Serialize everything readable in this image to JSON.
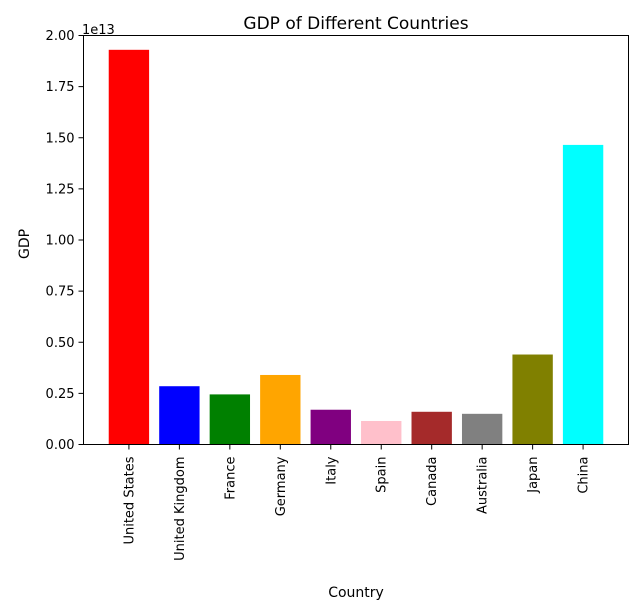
{
  "chart_data": {
    "type": "bar",
    "title": "GDP of Different Countries",
    "xlabel": "Country",
    "ylabel": "GDP",
    "offset_label": "1e13",
    "ylim": [
      0,
      2.0
    ],
    "yticks": [
      0.0,
      0.25,
      0.5,
      0.75,
      1.0,
      1.25,
      1.5,
      1.75,
      2.0
    ],
    "ytick_labels": [
      "0.00",
      "0.25",
      "0.50",
      "0.75",
      "1.00",
      "1.25",
      "1.50",
      "1.75",
      "2.00"
    ],
    "categories": [
      "United States",
      "United Kingdom",
      "France",
      "Germany",
      "Italy",
      "Spain",
      "Canada",
      "Australia",
      "Japan",
      "China"
    ],
    "values": [
      1.93,
      0.285,
      0.245,
      0.34,
      0.17,
      0.115,
      0.16,
      0.15,
      0.44,
      1.465
    ],
    "colors": [
      "#ff0000",
      "#0000ff",
      "#008000",
      "#ffa500",
      "#800080",
      "#ffc0cb",
      "#a52a2a",
      "#808080",
      "#808000",
      "#00ffff"
    ],
    "grid": false
  }
}
